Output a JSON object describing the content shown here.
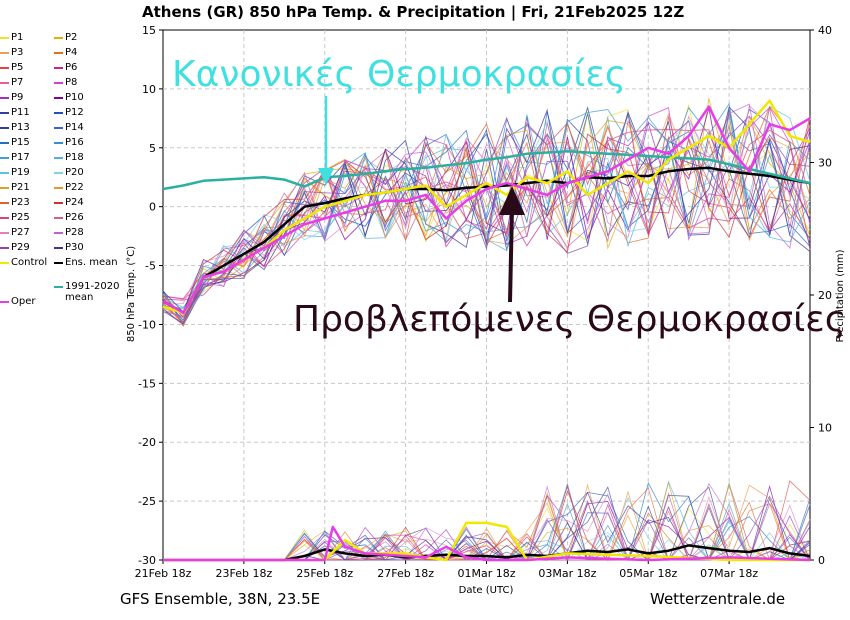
{
  "chart_data": {
    "type": "line",
    "title": "Athens  (GR)  850 hPa Temp. & Precipitation | Fri, 21Feb2025 12Z",
    "xlabel": "Date (UTC)",
    "ylabel": "850 hPa Temp. (°C)",
    "y2label": "Precipitation (mm)",
    "x_range_days": [
      0,
      16
    ],
    "ylim": [
      -30,
      15
    ],
    "y2lim": [
      0,
      40
    ],
    "yticks": [
      15,
      10,
      5,
      0,
      -5,
      -10,
      -15,
      -20,
      -25,
      -30
    ],
    "y2ticks": [
      40,
      30,
      20,
      10,
      0
    ],
    "xticks": [
      {
        "day": 0,
        "label": "21Feb 18z"
      },
      {
        "day": 2,
        "label": "23Feb 18z"
      },
      {
        "day": 4,
        "label": "25Feb 18z"
      },
      {
        "day": 6,
        "label": "27Feb 18z"
      },
      {
        "day": 8,
        "label": "01Mar 18z"
      },
      {
        "day": 10,
        "label": "03Mar 18z"
      },
      {
        "day": 12,
        "label": "05Mar 18z"
      },
      {
        "day": 14,
        "label": "07Mar 18z"
      }
    ],
    "grid": true,
    "series": [
      {
        "name": "Ens. mean",
        "color": "#000000",
        "days": [
          0,
          0.5,
          1,
          1.5,
          2,
          2.5,
          3,
          3.5,
          4,
          4.5,
          5,
          5.5,
          6,
          6.5,
          7,
          7.5,
          8,
          8.5,
          9,
          9.5,
          10,
          10.5,
          11,
          11.5,
          12,
          12.5,
          13,
          13.5,
          14,
          14.5,
          15,
          15.5,
          16
        ],
        "values": [
          -8,
          -9,
          -6,
          -5,
          -4,
          -3,
          -1.5,
          0,
          0.3,
          0.7,
          1,
          1.2,
          1.5,
          1.5,
          1.4,
          1.6,
          1.7,
          1.8,
          2,
          2.2,
          2,
          2.5,
          2.4,
          2.6,
          2.6,
          3,
          3.2,
          3.3,
          3,
          2.8,
          2.6,
          2.3,
          2
        ]
      },
      {
        "name": "1991-2020 mean",
        "color": "#2ab0a0",
        "days": [
          0,
          0.5,
          1,
          1.5,
          2,
          2.5,
          3,
          3.5,
          4,
          4.5,
          5,
          5.5,
          6,
          6.5,
          7,
          7.5,
          8,
          8.5,
          9,
          9.5,
          10,
          10.5,
          11,
          11.5,
          12,
          12.5,
          13,
          13.5,
          14,
          14.5,
          15,
          15.5,
          16
        ],
        "values": [
          1.5,
          1.8,
          2.2,
          2.3,
          2.4,
          2.5,
          2.3,
          1.7,
          2.5,
          2.6,
          2.8,
          3,
          3.2,
          3.3,
          3.5,
          3.7,
          4,
          4.2,
          4.5,
          4.6,
          4.7,
          4.6,
          4.5,
          4.4,
          4.3,
          4.2,
          4.1,
          4,
          3.6,
          3.2,
          2.8,
          2.4,
          2
        ]
      },
      {
        "name": "Control",
        "color": "#f0e800",
        "days": [
          0,
          0.5,
          1,
          1.5,
          2,
          2.5,
          3,
          3.5,
          4,
          4.5,
          5,
          5.5,
          6,
          6.5,
          7,
          7.5,
          8,
          8.5,
          9,
          9.5,
          10,
          10.5,
          11,
          11.5,
          12,
          12.5,
          13,
          13.5,
          14,
          14.5,
          15,
          15.5,
          16
        ],
        "values": [
          -8.5,
          -9,
          -6,
          -5.5,
          -4.5,
          -3.5,
          -2,
          -1,
          0,
          0.5,
          1,
          1.2,
          1.5,
          1.8,
          0,
          1,
          2,
          1,
          2.5,
          2,
          3,
          1,
          2,
          3,
          2,
          4,
          5,
          6,
          5,
          7,
          9,
          6,
          5.5
        ]
      },
      {
        "name": "Oper",
        "color": "#e83ce8",
        "days": [
          0,
          0.5,
          1,
          1.5,
          2,
          2.5,
          3,
          3.5,
          4,
          4.5,
          5,
          5.5,
          6,
          6.5,
          7,
          7.5,
          8,
          8.5,
          9,
          9.5,
          10,
          10.5,
          11,
          11.5,
          12,
          12.5,
          13,
          13.5,
          14,
          14.5,
          15,
          15.5,
          16
        ],
        "values": [
          -8,
          -9,
          -6,
          -5.5,
          -4.5,
          -3.5,
          -2.5,
          -1.5,
          -1,
          -0.5,
          0,
          0.5,
          0.5,
          1,
          -1,
          0.5,
          1.5,
          2,
          1.5,
          1,
          2,
          2.5,
          3,
          4,
          5,
          4.5,
          6,
          8.5,
          5,
          3,
          7,
          6.5,
          7.5
        ]
      }
    ],
    "precipitation_series": [
      {
        "name": "Ens. mean",
        "color": "#000000",
        "days": [
          0,
          1,
          2,
          3,
          3.5,
          4,
          4.5,
          5,
          5.5,
          6,
          6.5,
          7,
          7.5,
          8,
          8.5,
          9,
          9.5,
          10,
          10.5,
          11,
          11.5,
          12,
          12.5,
          13,
          13.5,
          14,
          14.5,
          15,
          15.5,
          16
        ],
        "values": [
          0,
          0,
          0,
          0,
          0.3,
          0.8,
          0.5,
          0.3,
          0.4,
          0.2,
          0.3,
          0.4,
          0.3,
          0.3,
          0.2,
          0.4,
          0.3,
          0.5,
          0.7,
          0.6,
          0.8,
          0.5,
          0.7,
          1.1,
          0.9,
          0.7,
          0.6,
          0.9,
          0.5,
          0.3
        ]
      },
      {
        "name": "Control",
        "color": "#f0e800",
        "days": [
          0,
          3,
          4,
          4.5,
          5,
          6,
          6.5,
          7,
          7.5,
          8,
          8.5,
          9,
          10,
          12,
          14,
          16
        ],
        "values": [
          0,
          0,
          0,
          1.5,
          0.5,
          0.5,
          0.2,
          0,
          2.8,
          2.8,
          2.5,
          0,
          0.5,
          0.3,
          0,
          0
        ]
      },
      {
        "name": "Oper",
        "color": "#e83ce8",
        "days": [
          0,
          3.5,
          4,
          4.2,
          4.5,
          5,
          6,
          6.5,
          7,
          7.5,
          8,
          9,
          10,
          12,
          14,
          16
        ],
        "values": [
          0,
          0,
          0,
          2.5,
          1,
          0.5,
          0.3,
          0.2,
          1,
          0.2,
          0,
          0,
          0.2,
          0,
          0.2,
          0
        ]
      }
    ],
    "members": [
      "P1",
      "P2",
      "P3",
      "P4",
      "P5",
      "P6",
      "P7",
      "P8",
      "P9",
      "P10",
      "P11",
      "P12",
      "P13",
      "P14",
      "P15",
      "P16",
      "P17",
      "P18",
      "P19",
      "P20",
      "P21",
      "P22",
      "P23",
      "P24",
      "P25",
      "P26",
      "P27",
      "P28",
      "P29",
      "P30"
    ],
    "member_colors": [
      "#f0e030",
      "#e0b000",
      "#e8a060",
      "#e07020",
      "#e84040",
      "#d02090",
      "#e060a0",
      "#d040d0",
      "#a030c0",
      "#8000a0",
      "#3040a0",
      "#2050c0",
      "#304090",
      "#4060d0",
      "#2070c0",
      "#3090d0",
      "#40a0d0",
      "#50b0e0",
      "#60c0e0",
      "#80d0e8",
      "#e0a020",
      "#f09030",
      "#e06030",
      "#d03030",
      "#e04070",
      "#d06090",
      "#e080c0",
      "#c060d0",
      "#9040b0",
      "#4030a0"
    ],
    "annotations": [
      {
        "text": "Κανονικές Θερμοκρασίες",
        "color": "#40e0e0"
      },
      {
        "text": "Προβλεπόμενες Θερμοκρασίες",
        "color": "#2a0a18"
      }
    ]
  },
  "legend": [
    {
      "label": "P1",
      "color": "#f0e030"
    },
    {
      "label": "P2",
      "color": "#e0b000"
    },
    {
      "label": "P3",
      "color": "#e8a060"
    },
    {
      "label": "P4",
      "color": "#e07020"
    },
    {
      "label": "P5",
      "color": "#e84040"
    },
    {
      "label": "P6",
      "color": "#d02090"
    },
    {
      "label": "P7",
      "color": "#e060a0"
    },
    {
      "label": "P8",
      "color": "#d040d0"
    },
    {
      "label": "P9",
      "color": "#a030c0"
    },
    {
      "label": "P10",
      "color": "#8000a0"
    },
    {
      "label": "P11",
      "color": "#3040a0"
    },
    {
      "label": "P12",
      "color": "#2050c0"
    },
    {
      "label": "P13",
      "color": "#304090"
    },
    {
      "label": "P14",
      "color": "#4060d0"
    },
    {
      "label": "P15",
      "color": "#2070c0"
    },
    {
      "label": "P16",
      "color": "#3090d0"
    },
    {
      "label": "P17",
      "color": "#40a0d0"
    },
    {
      "label": "P18",
      "color": "#50b0e0"
    },
    {
      "label": "P19",
      "color": "#60c0e0"
    },
    {
      "label": "P20",
      "color": "#80d0e8"
    },
    {
      "label": "P21",
      "color": "#e0a020"
    },
    {
      "label": "P22",
      "color": "#f09030"
    },
    {
      "label": "P23",
      "color": "#e06030"
    },
    {
      "label": "P24",
      "color": "#d03030"
    },
    {
      "label": "P25",
      "color": "#e04070"
    },
    {
      "label": "P26",
      "color": "#d06090"
    },
    {
      "label": "P27",
      "color": "#e080c0"
    },
    {
      "label": "P28",
      "color": "#c060d0"
    },
    {
      "label": "P29",
      "color": "#9040b0"
    },
    {
      "label": "P30",
      "color": "#4030a0"
    },
    {
      "label": "Control",
      "color": "#f0e800"
    },
    {
      "label": "Ens. mean",
      "color": "#000000"
    },
    {
      "label": "Oper",
      "color": "#e83ce8"
    },
    {
      "label": "1991-2020",
      "color": "#2ab0a0"
    }
  ],
  "legend_extra": "mean",
  "footer": {
    "left": "GFS Ensemble, 38N, 23.5E",
    "right": "Wetterzentrale.de"
  }
}
